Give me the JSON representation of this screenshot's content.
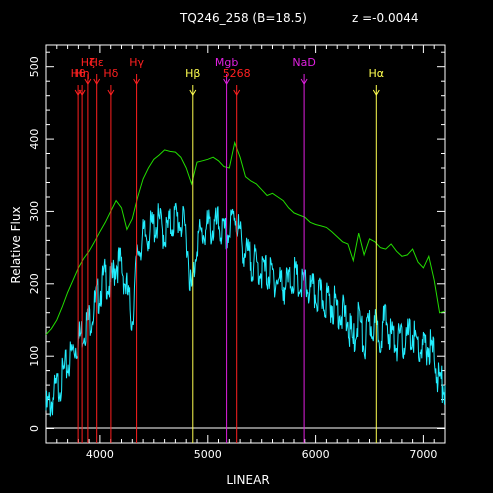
{
  "header": {
    "object_label": "TQ246_258 (B=18.5)",
    "redshift_label": "z =-0.0044"
  },
  "chart_data": {
    "type": "line",
    "xlabel": "LINEAR",
    "ylabel": "Relative Flux",
    "xlim": [
      3500,
      7200
    ],
    "ylim": [
      -20,
      530
    ],
    "xticks": [
      4000,
      5000,
      6000,
      7000
    ],
    "yticks": [
      0,
      100,
      200,
      300,
      400,
      500
    ],
    "grid": false,
    "colors": {
      "template": "#22dd00",
      "spectrum": "#22eeff",
      "balmer": "#ff2020",
      "metal": "#e020e0",
      "yellow": "#ffff50"
    },
    "template_series": {
      "x": [
        3500,
        3550,
        3600,
        3650,
        3700,
        3750,
        3800,
        3850,
        3900,
        3950,
        4000,
        4050,
        4100,
        4150,
        4200,
        4250,
        4300,
        4350,
        4400,
        4450,
        4500,
        4550,
        4600,
        4650,
        4700,
        4750,
        4800,
        4850,
        4900,
        4950,
        5000,
        5050,
        5100,
        5150,
        5200,
        5250,
        5300,
        5350,
        5400,
        5450,
        5500,
        5550,
        5600,
        5650,
        5700,
        5750,
        5800,
        5850,
        5900,
        5950,
        6000,
        6050,
        6100,
        6150,
        6200,
        6250,
        6300,
        6350,
        6400,
        6450,
        6500,
        6550,
        6600,
        6650,
        6700,
        6750,
        6800,
        6850,
        6900,
        6950,
        7000,
        7050,
        7100,
        7150,
        7200
      ],
      "y": [
        130,
        138,
        150,
        168,
        188,
        205,
        222,
        235,
        245,
        258,
        272,
        285,
        300,
        315,
        305,
        275,
        290,
        320,
        345,
        360,
        372,
        378,
        385,
        383,
        382,
        375,
        360,
        338,
        368,
        370,
        372,
        375,
        370,
        362,
        360,
        395,
        375,
        348,
        342,
        338,
        330,
        322,
        325,
        320,
        315,
        305,
        298,
        295,
        292,
        285,
        282,
        280,
        278,
        272,
        265,
        258,
        255,
        232,
        270,
        240,
        262,
        258,
        250,
        248,
        255,
        245,
        238,
        240,
        248,
        230,
        222,
        238,
        205,
        160,
        162
      ]
    },
    "spectrum_series": {
      "x": [
        3500,
        3550,
        3600,
        3650,
        3700,
        3750,
        3800,
        3850,
        3900,
        3950,
        4000,
        4050,
        4100,
        4150,
        4200,
        4250,
        4300,
        4350,
        4400,
        4450,
        4500,
        4550,
        4600,
        4650,
        4700,
        4750,
        4800,
        4850,
        4900,
        4950,
        5000,
        5050,
        5100,
        5150,
        5200,
        5250,
        5300,
        5350,
        5400,
        5450,
        5500,
        5550,
        5600,
        5650,
        5700,
        5750,
        5800,
        5850,
        5900,
        5950,
        6000,
        6050,
        6100,
        6150,
        6200,
        6250,
        6300,
        6350,
        6400,
        6450,
        6500,
        6550,
        6600,
        6650,
        6700,
        6750,
        6800,
        6850,
        6900,
        6950,
        7000,
        7050,
        7100,
        7150,
        7200
      ],
      "y": [
        25,
        38,
        55,
        70,
        88,
        108,
        122,
        138,
        150,
        168,
        190,
        210,
        195,
        230,
        225,
        190,
        150,
        245,
        262,
        270,
        280,
        285,
        268,
        280,
        292,
        285,
        272,
        185,
        262,
        268,
        278,
        275,
        282,
        265,
        270,
        300,
        265,
        240,
        232,
        225,
        218,
        215,
        210,
        205,
        198,
        200,
        212,
        195,
        198,
        190,
        185,
        180,
        178,
        172,
        168,
        158,
        148,
        115,
        160,
        110,
        145,
        140,
        132,
        150,
        128,
        120,
        118,
        125,
        130,
        112,
        108,
        115,
        100,
        62,
        60
      ]
    },
    "lines": [
      {
        "label": "Hε",
        "wavelength": 3970,
        "group": "balmer",
        "tier": 1
      },
      {
        "label": "Hζ",
        "wavelength": 3889,
        "group": "balmer",
        "tier": 1
      },
      {
        "label": "Hη",
        "wavelength": 3835,
        "group": "balmer",
        "tier": 2
      },
      {
        "label": "Hθ",
        "wavelength": 3798,
        "group": "balmer",
        "tier": 2
      },
      {
        "label": "Hδ",
        "wavelength": 4102,
        "group": "balmer",
        "tier": 2
      },
      {
        "label": "Hγ",
        "wavelength": 4340,
        "group": "balmer",
        "tier": 1
      },
      {
        "label": "Hβ",
        "wavelength": 4861,
        "group": "yellow",
        "tier": 2
      },
      {
        "label": "Mgb",
        "wavelength": 5175,
        "group": "metal",
        "tier": 1
      },
      {
        "label": "5268",
        "wavelength": 5268,
        "group": "balmer",
        "tier": 2
      },
      {
        "label": "NaD",
        "wavelength": 5893,
        "group": "metal",
        "tier": 1
      },
      {
        "label": "Hα",
        "wavelength": 6563,
        "group": "yellow",
        "tier": 2
      }
    ]
  }
}
